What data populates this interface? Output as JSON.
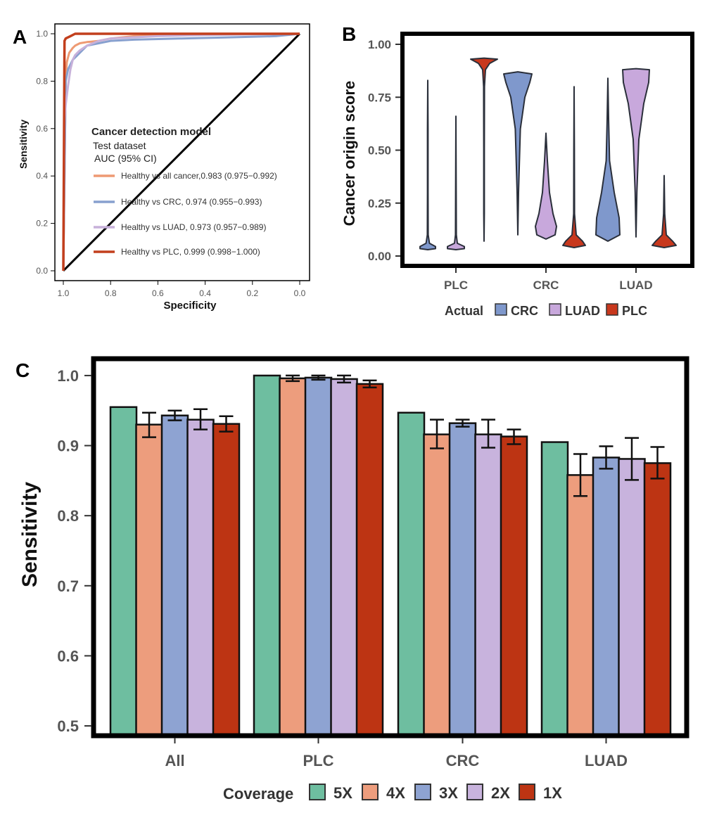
{
  "panel_labels": {
    "a": "A",
    "b": "B",
    "c": "C"
  },
  "colors": {
    "all_cancer": "#ee9a73",
    "crc": "#87a0cf",
    "luad": "#c7b1da",
    "plc": "#c23f1d",
    "crc_violin": "#7f98cc",
    "luad_violin": "#c8a8dc",
    "plc_violin": "#c8381d",
    "cov_5x": "#6ebea0",
    "cov_4x": "#ed9d7d",
    "cov_3x": "#8ea3d2",
    "cov_2x": "#c8b3dd",
    "cov_1x": "#bd3413"
  },
  "chart_data": [
    {
      "id": "A",
      "type": "line",
      "title": "Cancer detection model",
      "subtitle": "Test dataset",
      "subtitle2": "AUC (95% CI)",
      "xlabel": "Specificity",
      "ylabel": "Sensitivity",
      "xlim": [
        1.0,
        0.0
      ],
      "ylim": [
        0.0,
        1.0
      ],
      "x_ticks": [
        "1.0",
        "0.8",
        "0.6",
        "0.4",
        "0.2",
        "0.0"
      ],
      "y_ticks": [
        "0.0",
        "0.2",
        "0.4",
        "0.6",
        "0.8",
        "1.0"
      ],
      "series": [
        {
          "name": "Healthy vs all cancer,0.983 (0.975−0.992)",
          "color_key": "all_cancer",
          "x": [
            1.0,
            0.99,
            0.985,
            0.975,
            0.96,
            0.95,
            0.93,
            0.9,
            0.85,
            0.8,
            0.7,
            0.5,
            0.3,
            0.0
          ],
          "y": [
            0.0,
            0.82,
            0.88,
            0.92,
            0.94,
            0.95,
            0.96,
            0.965,
            0.97,
            0.98,
            0.99,
            0.995,
            1.0,
            1.0
          ]
        },
        {
          "name": "Healthy vs CRC, 0.974 (0.955−0.993)",
          "color_key": "crc",
          "x": [
            1.0,
            0.99,
            0.98,
            0.96,
            0.94,
            0.92,
            0.9,
            0.85,
            0.8,
            0.7,
            0.5,
            0.3,
            0.1,
            0.0
          ],
          "y": [
            0.0,
            0.8,
            0.85,
            0.89,
            0.91,
            0.93,
            0.95,
            0.96,
            0.97,
            0.975,
            0.98,
            0.985,
            0.99,
            1.0
          ]
        },
        {
          "name": "Healthy vs LUAD, 0.973 (0.957−0.989)",
          "color_key": "luad",
          "x": [
            1.0,
            0.995,
            0.99,
            0.98,
            0.97,
            0.96,
            0.95,
            0.93,
            0.9,
            0.85,
            0.8,
            0.6,
            0.4,
            0.0
          ],
          "y": [
            0.0,
            0.63,
            0.7,
            0.78,
            0.85,
            0.89,
            0.91,
            0.93,
            0.95,
            0.97,
            0.98,
            0.99,
            0.995,
            1.0
          ]
        },
        {
          "name": "Healthy vs PLC, 0.999 (0.998−1.000)",
          "color_key": "plc",
          "x": [
            1.0,
            0.995,
            0.99,
            0.97,
            0.95,
            0.9,
            0.7,
            0.0
          ],
          "y": [
            0.0,
            0.97,
            0.98,
            0.99,
            1.0,
            1.0,
            1.0,
            1.0
          ]
        }
      ],
      "diagonal": true
    },
    {
      "id": "B",
      "type": "violin",
      "ylabel": "Cancer origin score",
      "ylim": [
        0.0,
        1.0
      ],
      "y_ticks": [
        "0.00",
        "0.25",
        "0.50",
        "0.75",
        "1.00"
      ],
      "categories": [
        "PLC",
        "CRC",
        "LUAD"
      ],
      "legend_title": "Actual",
      "legend": [
        {
          "name": "CRC",
          "color_key": "crc_violin"
        },
        {
          "name": "LUAD",
          "color_key": "luad_violin"
        },
        {
          "name": "PLC",
          "color_key": "plc_violin"
        }
      ],
      "groups": [
        {
          "category": "PLC",
          "series": "CRC",
          "min": 0.03,
          "max": 0.83
        },
        {
          "category": "PLC",
          "series": "LUAD",
          "min": 0.03,
          "max": 0.66
        },
        {
          "category": "PLC",
          "series": "PLC",
          "min": 0.07,
          "max": 0.93
        },
        {
          "category": "CRC",
          "series": "CRC",
          "min": 0.1,
          "max": 0.87
        },
        {
          "category": "CRC",
          "series": "LUAD",
          "min": 0.08,
          "max": 0.58
        },
        {
          "category": "CRC",
          "series": "PLC",
          "min": 0.04,
          "max": 0.8
        },
        {
          "category": "LUAD",
          "series": "CRC",
          "min": 0.07,
          "max": 0.84
        },
        {
          "category": "LUAD",
          "series": "LUAD",
          "min": 0.09,
          "max": 0.88
        },
        {
          "category": "LUAD",
          "series": "PLC",
          "min": 0.04,
          "max": 0.38
        }
      ]
    },
    {
      "id": "C",
      "type": "bar",
      "ylabel": "Sensitivity",
      "ylim": [
        0.49,
        1.02
      ],
      "y_ticks": [
        "0.5",
        "0.6",
        "0.7",
        "0.8",
        "0.9",
        "1.0"
      ],
      "categories": [
        "All",
        "PLC",
        "CRC",
        "LUAD"
      ],
      "legend_title": "Coverage",
      "series": [
        {
          "name": "5X",
          "color_key": "cov_5x",
          "values": [
            0.955,
            1.0,
            0.947,
            0.905
          ],
          "errors": [
            null,
            null,
            null,
            null
          ]
        },
        {
          "name": "4X",
          "color_key": "cov_4x",
          "values": [
            0.93,
            0.996,
            0.916,
            0.858
          ],
          "errors": [
            [
              0.912,
              0.947
            ],
            [
              0.992,
              1.0
            ],
            [
              0.896,
              0.937
            ],
            [
              0.828,
              0.888
            ]
          ]
        },
        {
          "name": "3X",
          "color_key": "cov_3x",
          "values": [
            0.943,
            0.997,
            0.932,
            0.883
          ],
          "errors": [
            [
              0.936,
              0.95
            ],
            [
              0.994,
              1.0
            ],
            [
              0.927,
              0.937
            ],
            [
              0.867,
              0.899
            ]
          ]
        },
        {
          "name": "2X",
          "color_key": "cov_2x",
          "values": [
            0.937,
            0.995,
            0.916,
            0.881
          ],
          "errors": [
            [
              0.923,
              0.952
            ],
            [
              0.99,
              1.0
            ],
            [
              0.897,
              0.937
            ],
            [
              0.851,
              0.911
            ]
          ]
        },
        {
          "name": "1X",
          "color_key": "cov_1x",
          "values": [
            0.931,
            0.988,
            0.913,
            0.875
          ],
          "errors": [
            [
              0.92,
              0.942
            ],
            [
              0.983,
              0.993
            ],
            [
              0.902,
              0.923
            ],
            [
              0.853,
              0.898
            ]
          ]
        }
      ]
    }
  ]
}
